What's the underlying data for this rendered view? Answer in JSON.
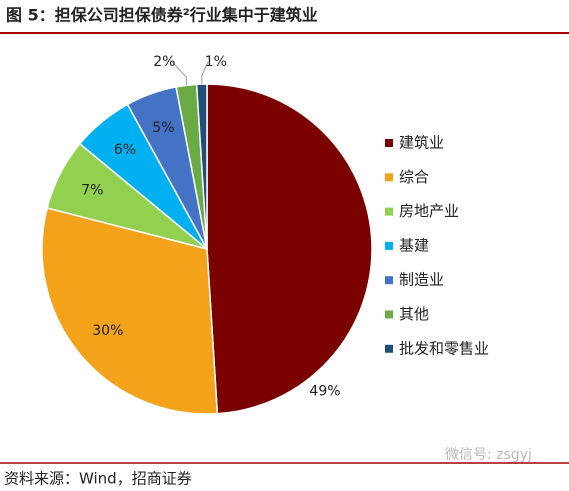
{
  "chart_data": {
    "type": "pie",
    "title": "图 5：担保公司担保债券²行业集中于建筑业",
    "categories": [
      "建筑业",
      "综合",
      "房地产业",
      "基建",
      "制造业",
      "其他",
      "批发和零售业"
    ],
    "values": [
      49,
      30,
      7,
      6,
      5,
      2,
      1
    ],
    "value_labels": [
      "49%",
      "30%",
      "7%",
      "6%",
      "5%",
      "2%",
      "1%"
    ],
    "colors": [
      "#7b0000",
      "#f5a21b",
      "#92d050",
      "#00b0f0",
      "#4472c4",
      "#6aab46",
      "#1f4e79"
    ],
    "legend": "right",
    "source": "资料来源：Wind，招商证券",
    "watermark": "微信号: zsgyj"
  }
}
